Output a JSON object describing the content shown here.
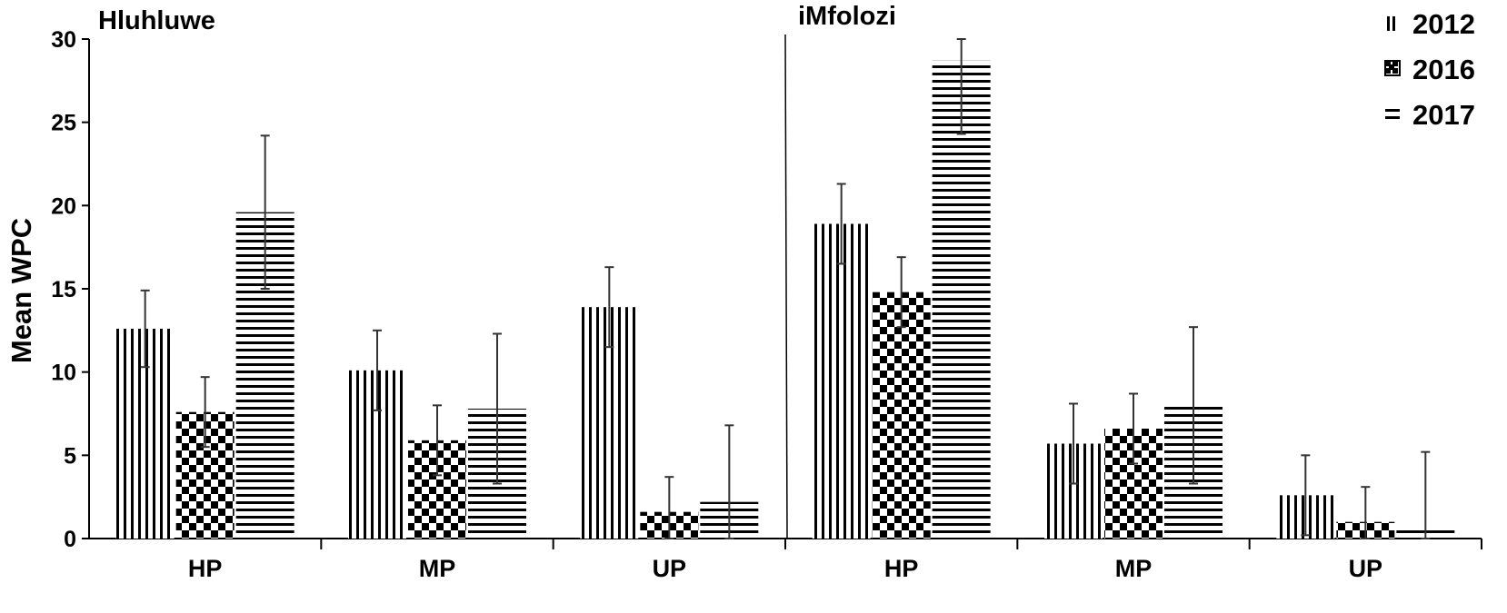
{
  "chart_data": {
    "type": "bar",
    "ylabel": "Mean WPC",
    "ylim": [
      0,
      30
    ],
    "yticks": [
      0,
      5,
      10,
      15,
      20,
      25,
      30
    ],
    "grid": false,
    "legend_position": "top-right",
    "panels": [
      {
        "title": "Hluhluwe",
        "categories": [
          "HP",
          "MP",
          "UP"
        ],
        "series": [
          {
            "name": "2012",
            "pattern": "vertical-lines",
            "values": [
              12.6,
              10.1,
              13.9
            ],
            "errors": [
              2.3,
              2.4,
              2.4
            ]
          },
          {
            "name": "2016",
            "pattern": "checker",
            "values": [
              7.6,
              5.9,
              1.6
            ],
            "errors": [
              2.1,
              2.1,
              2.1
            ]
          },
          {
            "name": "2017",
            "pattern": "horizontal-lines",
            "values": [
              19.6,
              7.8,
              2.2
            ],
            "errors": [
              4.6,
              4.5,
              4.6
            ]
          }
        ]
      },
      {
        "title": "iMfolozi",
        "categories": [
          "HP",
          "MP",
          "UP"
        ],
        "series": [
          {
            "name": "2012",
            "pattern": "vertical-lines",
            "values": [
              18.9,
              5.7,
              2.6
            ],
            "errors": [
              2.4,
              2.4,
              2.4
            ]
          },
          {
            "name": "2016",
            "pattern": "checker",
            "values": [
              14.8,
              6.6,
              1.0
            ],
            "errors": [
              2.1,
              2.1,
              2.1
            ]
          },
          {
            "name": "2017",
            "pattern": "horizontal-lines",
            "values": [
              28.7,
              8.0,
              0.7
            ],
            "errors": [
              4.4,
              4.7,
              4.5
            ]
          }
        ]
      }
    ]
  }
}
